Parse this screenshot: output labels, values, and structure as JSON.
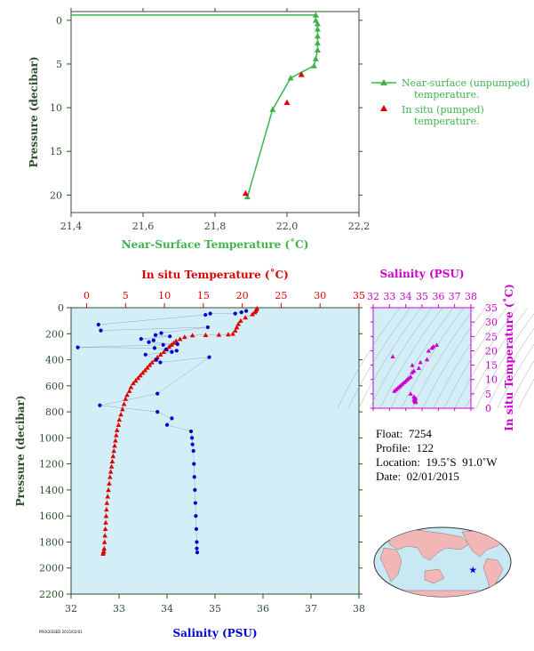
{
  "colors": {
    "green": "#3cb44b",
    "red": "#dd0000",
    "blue": "#0000cc",
    "magenta": "#cc00cc",
    "panel_bg": "#d4eef8",
    "axis_dark": "#2e4f2e"
  },
  "chart_data": [
    {
      "type": "line",
      "xlabel": "Near-Surface Temperature (˚C)",
      "ylabel": "Pressure (decibar)",
      "xlim": [
        21.4,
        22.2
      ],
      "ylim": [
        22,
        -1
      ],
      "xticks": [
        "21,4",
        "21,6",
        "21,8",
        "22,0",
        "22,2"
      ],
      "yticks": [
        "0",
        "5",
        "10",
        "15",
        "20"
      ],
      "legend_position": "right",
      "series": [
        {
          "name": "Near-surface (unpumped) temperature.",
          "marker": "triangle",
          "color": "#3cb44b",
          "x": [
            21.4,
            22.08,
            22.08,
            22.085,
            22.085,
            22.085,
            22.085,
            22.085,
            22.08,
            22.075,
            22.01,
            21.96,
            21.89
          ],
          "y": [
            -0.6,
            -0.6,
            0.0,
            0.4,
            1.0,
            1.8,
            2.6,
            3.4,
            4.4,
            5.2,
            6.6,
            10.2,
            20.2
          ]
        },
        {
          "name": "In situ (pumped) temperature.",
          "marker": "triangle",
          "color": "#dd0000",
          "x": [
            22.04,
            22.0,
            21.885
          ],
          "y": [
            6.2,
            9.4,
            19.8
          ]
        }
      ]
    },
    {
      "type": "line",
      "xlabel": "Salinity (PSU)",
      "ylabel": "Pressure (decibar)",
      "x2label": "In situ Temperature (˚C)",
      "xlim": [
        32,
        38
      ],
      "x2lim": [
        -2,
        35
      ],
      "ylim": [
        2200,
        0
      ],
      "xticks": [
        "32",
        "33",
        "34",
        "35",
        "36",
        "37",
        "38"
      ],
      "x2ticks": [
        "0",
        "5",
        "10",
        "15",
        "20",
        "25",
        "30",
        "35"
      ],
      "yticks": [
        "0",
        "200",
        "400",
        "600",
        "800",
        "1000",
        "1200",
        "1400",
        "1600",
        "1800",
        "2000",
        "2200"
      ],
      "series": [
        {
          "name": "Temperature",
          "marker": "triangle",
          "color": "#dd0000",
          "x": [
            21.9,
            21.8,
            21.7,
            21.6,
            21.3,
            20.4,
            19.8,
            19.5,
            19.3,
            19.1,
            18.8,
            18.2,
            17.0,
            15.3,
            13.6,
            12.6,
            12.0,
            11.5,
            11.2,
            10.9,
            10.6,
            10.3,
            9.9,
            9.5,
            9.1,
            8.8,
            8.4,
            8.1,
            7.8,
            7.5,
            7.2,
            6.9,
            6.6,
            6.3,
            6.0,
            5.7,
            5.5,
            5.2,
            5.0,
            4.8,
            4.6,
            4.4,
            4.2,
            4.1,
            3.9,
            3.8,
            3.7,
            3.6,
            3.5,
            3.4,
            3.3,
            3.2,
            3.1,
            3.0,
            2.9,
            2.8,
            2.7,
            2.6,
            2.55,
            2.5,
            2.45,
            2.4,
            2.35,
            2.3,
            2.25,
            2.2,
            2.15,
            2.1
          ],
          "y": [
            5,
            15,
            25,
            35,
            50,
            75,
            100,
            125,
            150,
            175,
            200,
            205,
            208,
            210,
            212,
            225,
            240,
            255,
            270,
            285,
            300,
            320,
            340,
            360,
            380,
            400,
            420,
            440,
            460,
            480,
            500,
            520,
            540,
            560,
            580,
            610,
            640,
            670,
            700,
            740,
            780,
            820,
            860,
            900,
            940,
            980,
            1020,
            1060,
            1100,
            1140,
            1180,
            1220,
            1260,
            1300,
            1350,
            1400,
            1450,
            1500,
            1550,
            1600,
            1650,
            1700,
            1750,
            1800,
            1850,
            1870,
            1880,
            1890
          ]
        },
        {
          "name": "Salinity",
          "marker": "dot",
          "color": "#0000cc",
          "x": [
            35.65,
            35.55,
            35.42,
            34.9,
            34.8,
            32.57,
            32.62,
            34.85,
            33.88,
            33.76,
            34.06,
            33.46,
            33.72,
            33.62,
            34.22,
            33.92,
            32.14,
            33.74,
            33.98,
            34.2,
            34.1,
            33.55,
            33.78,
            33.86,
            34.88,
            33.8,
            32.6,
            33.8,
            34.1,
            34.0,
            34.5,
            34.52,
            34.53,
            34.55,
            34.56,
            34.57,
            34.58,
            34.59,
            34.6,
            34.61,
            34.62,
            34.62,
            34.63
          ],
          "y": [
            25,
            35,
            45,
            45,
            55,
            130,
            175,
            150,
            195,
            210,
            220,
            240,
            250,
            265,
            280,
            285,
            305,
            310,
            320,
            330,
            340,
            360,
            400,
            420,
            380,
            660,
            750,
            800,
            850,
            900,
            950,
            1000,
            1050,
            1100,
            1200,
            1300,
            1400,
            1500,
            1600,
            1700,
            1800,
            1850,
            1880
          ]
        }
      ]
    },
    {
      "type": "scatter",
      "xlabel": "Salinity (PSU)",
      "ylabel": "In situ Temperature (˚C)",
      "xlim": [
        32,
        38
      ],
      "ylim": [
        0,
        35
      ],
      "xticks": [
        "32",
        "33",
        "34",
        "35",
        "36",
        "37",
        "38"
      ],
      "yticks": [
        "0",
        "5",
        "10",
        "15",
        "20",
        "25",
        "30",
        "35"
      ],
      "series": [
        {
          "name": "T-S",
          "marker": "triangle",
          "color": "#cc00cc",
          "x": [
            35.9,
            35.7,
            35.6,
            35.4,
            35.3,
            34.9,
            34.8,
            34.5,
            34.4,
            34.3,
            34.2,
            34.1,
            34.0,
            33.9,
            33.8,
            33.7,
            33.6,
            33.5,
            33.4,
            33.3,
            33.2,
            34.4,
            34.3,
            34.5,
            34.6,
            34.5,
            34.6,
            34.55,
            34.58,
            34.6
          ],
          "y": [
            22,
            21.5,
            21,
            20,
            17,
            16,
            14,
            13,
            12.5,
            11,
            10.5,
            10,
            9.5,
            9,
            8.5,
            8,
            7.5,
            7,
            6.5,
            6,
            18,
            15,
            5,
            4,
            3.5,
            3,
            2.7,
            2.5,
            2.3,
            2.1
          ]
        }
      ]
    }
  ],
  "legend": {
    "unpumped_line1": "Near-surface (unpumped)",
    "unpumped_line2": "temperature.",
    "pumped_line1": "In situ (pumped)",
    "pumped_line2": "temperature."
  },
  "info": {
    "float": "Float:  7254",
    "profile": "Profile:  122",
    "location": "Location:  19.5˚S  91.0˚W",
    "date": "Date:  02/01/2015"
  },
  "footer_text": "PROCESSED 2015/02/01",
  "map": {
    "float_marker_lon": -91.0,
    "float_marker_lat": -19.5
  }
}
